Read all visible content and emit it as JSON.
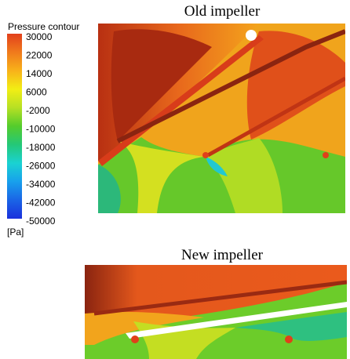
{
  "legend": {
    "title": "Pressure contour",
    "labels": [
      30000,
      22000,
      14000,
      6000,
      -2000,
      -10000,
      -18000,
      -26000,
      -34000,
      -42000,
      -50000
    ],
    "unit": "[Pa]"
  },
  "panels": [
    {
      "title": "Old impeller"
    },
    {
      "title": "New impeller"
    }
  ]
}
